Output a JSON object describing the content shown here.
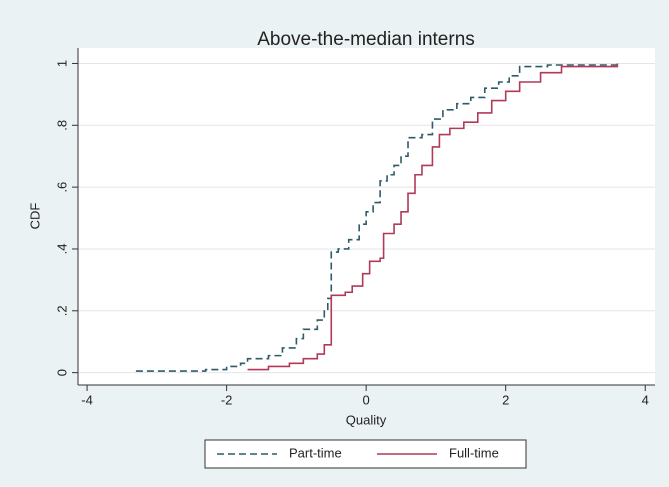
{
  "chart_data": {
    "type": "step",
    "title": "Above-the-median interns",
    "x_label": "Quality",
    "y_label": "CDF",
    "xlim": [
      -4.13,
      4.14
    ],
    "ylim": [
      -0.04,
      1.05
    ],
    "xticks": [
      -4,
      -2,
      0,
      2,
      4
    ],
    "yticks": [
      0,
      {
        "value": 0.2,
        "label": ".2"
      },
      {
        "value": 0.4,
        "label": ".4"
      },
      {
        "value": 0.6,
        "label": ".6"
      },
      {
        "value": 0.8,
        "label": ".8"
      },
      1
    ],
    "grid": true,
    "legend": "bottom",
    "series": [
      {
        "name": "Part-time",
        "color": "#2e5b6a",
        "dash": true,
        "x": [
          -3.3,
          -2.3,
          -2.0,
          -1.8,
          -1.7,
          -1.4,
          -1.2,
          -1.0,
          -0.9,
          -0.7,
          -0.6,
          -0.55,
          -0.5,
          -0.4,
          -0.25,
          -0.1,
          0.0,
          0.1,
          0.2,
          0.3,
          0.4,
          0.5,
          0.6,
          0.8,
          0.95,
          1.1,
          1.3,
          1.5,
          1.7,
          1.9,
          2.05,
          2.2,
          2.6,
          3.6
        ],
        "values": [
          0.005,
          0.01,
          0.02,
          0.03,
          0.045,
          0.055,
          0.08,
          0.11,
          0.14,
          0.17,
          0.2,
          0.24,
          0.39,
          0.4,
          0.43,
          0.48,
          0.52,
          0.55,
          0.62,
          0.64,
          0.67,
          0.7,
          0.76,
          0.77,
          0.82,
          0.85,
          0.87,
          0.89,
          0.92,
          0.94,
          0.96,
          0.99,
          0.995,
          1.0
        ]
      },
      {
        "name": "Full-time",
        "color": "#b03a58",
        "dash": false,
        "x": [
          -1.7,
          -1.4,
          -1.1,
          -0.9,
          -0.7,
          -0.6,
          -0.5,
          -0.3,
          -0.2,
          -0.05,
          0.05,
          0.2,
          0.25,
          0.4,
          0.5,
          0.6,
          0.7,
          0.8,
          0.95,
          1.05,
          1.2,
          1.4,
          1.6,
          1.8,
          2.0,
          2.2,
          2.5,
          2.8,
          3.6
        ],
        "values": [
          0.01,
          0.02,
          0.03,
          0.045,
          0.06,
          0.09,
          0.25,
          0.26,
          0.28,
          0.32,
          0.36,
          0.37,
          0.45,
          0.48,
          0.52,
          0.58,
          0.64,
          0.67,
          0.73,
          0.77,
          0.79,
          0.81,
          0.84,
          0.88,
          0.91,
          0.94,
          0.97,
          0.99,
          1.0
        ]
      }
    ]
  }
}
